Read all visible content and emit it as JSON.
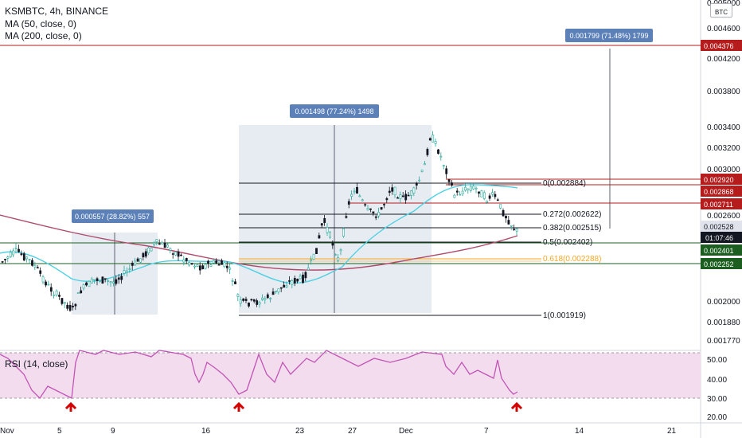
{
  "legend": {
    "symbol": "KSMBTC, 4h, BINANCE",
    "ma50": "MA (50, close, 0)",
    "ma200": "MA (200, close, 0)",
    "rsi": "RSI (14, close)"
  },
  "currency_badge": "BTC",
  "price_axis": {
    "ticks": [
      "0.005000",
      "0.004600",
      "0.004200",
      "0.003800",
      "0.003400",
      "0.003200",
      "0.003000",
      "0.002600",
      "0.002000",
      "0.001880",
      "0.001770"
    ],
    "tags": [
      {
        "text": "0.004376",
        "color": "#b71c1c"
      },
      {
        "text": "0.002920",
        "color": "#b71c1c"
      },
      {
        "text": "0.002868",
        "color": "#b71c1c"
      },
      {
        "text": "0.002711",
        "color": "#b71c1c"
      },
      {
        "text": "0.002528",
        "color": "#e0e3eb",
        "text_color": "#131722"
      },
      {
        "text": "01:07:46",
        "color": "#131722"
      },
      {
        "text": "0.002401",
        "color": "#1b5e20"
      },
      {
        "text": "0.002252",
        "color": "#1b5e20"
      }
    ]
  },
  "rsi_axis": {
    "ticks": [
      "50.00",
      "40.00",
      "30.00",
      "20.00"
    ]
  },
  "time_axis": {
    "labels": [
      "Nov",
      "5",
      "9",
      "16",
      "23",
      "27",
      "Dec",
      "7",
      "14",
      "21"
    ]
  },
  "fib_levels": [
    {
      "label": "0(0.002884)"
    },
    {
      "label": "0.272(0.002622)"
    },
    {
      "label": "0.382(0.002515)"
    },
    {
      "label": "0.5(0.002402)"
    },
    {
      "label": "0.618(0.002288)"
    },
    {
      "label": "1(0.001919)"
    }
  ],
  "measure_boxes": [
    {
      "label": "0.000557 (28.82%) 557"
    },
    {
      "label": "0.001498 (77.24%) 1498"
    },
    {
      "label": "0.001799 (71.48%) 1799"
    }
  ],
  "colors": {
    "candle_up": "#26a69a",
    "candle_down": "#131722",
    "ma50": "#4dd0e1",
    "ma200": "#b04a6a",
    "resistance_line": "#b71c1c",
    "support_line": "#1b5e20",
    "fib_618": "#f9a825",
    "rsi_fill": "#f3dcee",
    "rsi_line": "#c155b5",
    "arrow": "#d50000",
    "measure_box": "#5b81b8"
  }
}
